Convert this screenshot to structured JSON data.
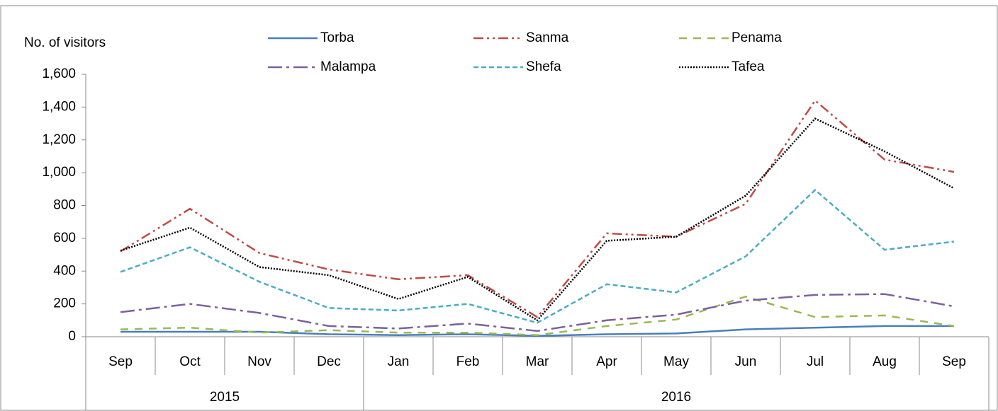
{
  "chart_data": {
    "type": "line",
    "y_label": "No. of visitors",
    "categories": [
      "Sep",
      "Oct",
      "Nov",
      "Dec",
      "Jan",
      "Feb",
      "Mar",
      "Apr",
      "May",
      "Jun",
      "Jul",
      "Aug",
      "Sep"
    ],
    "years": [
      "2015",
      "2015",
      "2015",
      "2015",
      "2016",
      "2016",
      "2016",
      "2016",
      "2016",
      "2016",
      "2016",
      "2016",
      "2016"
    ],
    "series": [
      {
        "name": "Torba",
        "color": "#4a7ebb",
        "values": [
          30,
          30,
          30,
          15,
          10,
          15,
          5,
          15,
          20,
          45,
          55,
          65,
          65
        ]
      },
      {
        "name": "Sanma",
        "color": "#be4b48",
        "values": [
          520,
          780,
          510,
          410,
          350,
          375,
          120,
          630,
          610,
          810,
          1440,
          1080,
          1005
        ]
      },
      {
        "name": "Penama",
        "color": "#98b954",
        "values": [
          45,
          55,
          25,
          40,
          25,
          25,
          10,
          65,
          105,
          245,
          120,
          130,
          65
        ]
      },
      {
        "name": "Malampa",
        "color": "#7d60a0",
        "values": [
          150,
          200,
          145,
          65,
          50,
          80,
          35,
          100,
          135,
          220,
          255,
          260,
          185
        ]
      },
      {
        "name": "Shefa",
        "color": "#4bacc6",
        "values": [
          395,
          545,
          335,
          175,
          160,
          200,
          85,
          320,
          270,
          490,
          895,
          530,
          580
        ]
      },
      {
        "name": "Tafea",
        "color": "#000000",
        "values": [
          525,
          665,
          425,
          375,
          230,
          365,
          100,
          585,
          610,
          860,
          1330,
          1130,
          905
        ]
      }
    ],
    "ylim": [
      0,
      1600
    ],
    "yticks": [
      0,
      200,
      400,
      600,
      800,
      {
        "value": 1000,
        "label": "1,000"
      },
      {
        "value": 1200,
        "label": "1,200"
      },
      {
        "value": 1400,
        "label": "1,400"
      },
      {
        "value": 1600,
        "label": "1,600"
      }
    ],
    "grid": false,
    "legend": "top"
  }
}
